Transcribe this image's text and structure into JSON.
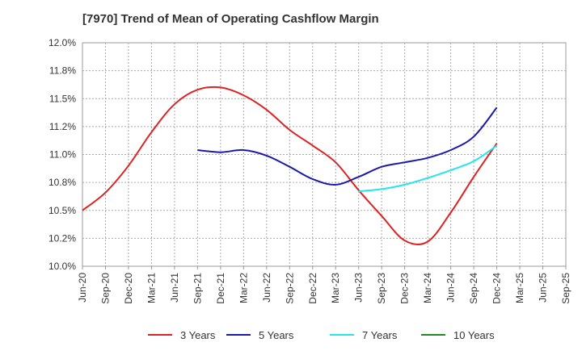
{
  "chart_data": {
    "type": "line",
    "title": "[7970]  Trend of Mean of Operating Cashflow Margin",
    "xlabel": "",
    "ylabel": "",
    "x": [
      "Jun-20",
      "Sep-20",
      "Dec-20",
      "Mar-21",
      "Jun-21",
      "Sep-21",
      "Dec-21",
      "Mar-22",
      "Jun-22",
      "Sep-22",
      "Dec-22",
      "Mar-23",
      "Jun-23",
      "Sep-23",
      "Dec-23",
      "Mar-24",
      "Jun-24",
      "Sep-24",
      "Dec-24",
      "Mar-25",
      "Jun-25",
      "Sep-25"
    ],
    "y_ticks": [
      "12.0%",
      "11.8%",
      "11.5%",
      "11.2%",
      "11.0%",
      "10.8%",
      "10.5%",
      "10.2%",
      "10.0%"
    ],
    "y_tick_values": [
      12.0,
      11.75,
      11.5,
      11.25,
      11.0,
      10.75,
      10.5,
      10.25,
      10.0
    ],
    "ylim": [
      10.0,
      12.0
    ],
    "grid": true,
    "legend_position": "bottom",
    "series": [
      {
        "name": "3 Years",
        "color": "#dd2222",
        "values": [
          10.5,
          10.66,
          10.9,
          11.2,
          11.45,
          11.58,
          11.6,
          11.53,
          11.4,
          11.22,
          11.08,
          10.93,
          10.68,
          10.45,
          10.23,
          10.22,
          10.48,
          10.8,
          11.1,
          null,
          null,
          null
        ]
      },
      {
        "name": "5 Years",
        "color": "#1a1aaa",
        "values": [
          null,
          null,
          null,
          null,
          null,
          11.04,
          11.02,
          11.04,
          10.99,
          10.89,
          10.78,
          10.73,
          10.8,
          10.89,
          10.93,
          10.97,
          11.04,
          11.16,
          11.42,
          null,
          null,
          null
        ]
      },
      {
        "name": "7 Years",
        "color": "#22e5ee",
        "values": [
          null,
          null,
          null,
          null,
          null,
          null,
          null,
          null,
          null,
          null,
          null,
          null,
          10.67,
          10.69,
          10.73,
          10.79,
          10.86,
          10.94,
          11.08,
          null,
          null,
          null
        ]
      },
      {
        "name": "10 Years",
        "color": "#228822",
        "values": [
          null,
          null,
          null,
          null,
          null,
          null,
          null,
          null,
          null,
          null,
          null,
          null,
          null,
          null,
          null,
          null,
          null,
          null,
          null,
          null,
          null,
          null
        ]
      }
    ]
  }
}
